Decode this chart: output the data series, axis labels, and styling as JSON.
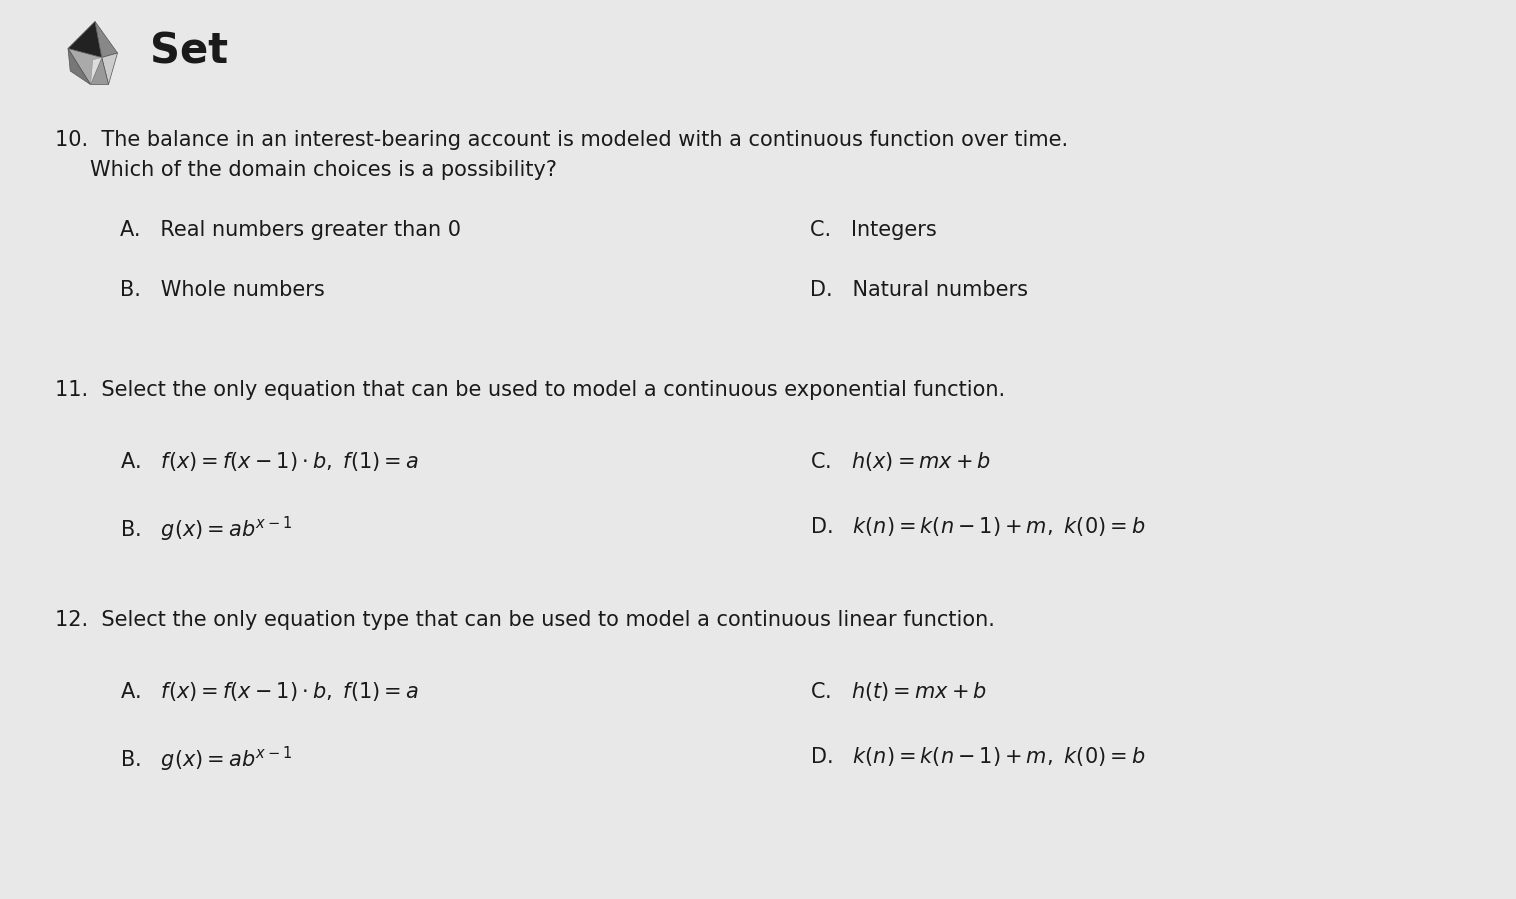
{
  "bg_color": "#e8e8e8",
  "text_color": "#1a1a1a",
  "title": "Set",
  "title_fontsize": 30,
  "stem_fontsize": 15,
  "answer_fontsize": 15,
  "q10_line1": "10.  The balance in an interest-bearing account is modeled with a continuous function over time.",
  "q10_line2": "Which of the domain choices is a possibility?",
  "q10_A": "A.   Real numbers greater than 0",
  "q10_B": "B.   Whole numbers",
  "q10_C": "C.   Integers",
  "q10_D": "D.   Natural numbers",
  "q11_stem": "11.  Select the only equation that can be used to model a continuous exponential function.",
  "q12_stem": "12.  Select the only equation type that can be used to model a continuous linear function.",
  "logo_dark": "#2a2a2a",
  "logo_mid": "#666666",
  "logo_light": "#bbbbbb",
  "logo_white": "#e0e0e0"
}
